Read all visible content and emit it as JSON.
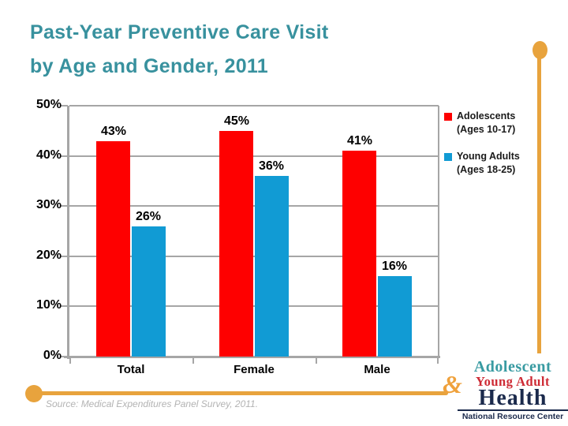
{
  "slide": {
    "title_line1": "Past-Year Preventive Care Visit",
    "title_line2": "by Age and Gender, 2011",
    "source": "Source: Medical Expenditures Panel Survey, 2011."
  },
  "chart_data": {
    "type": "bar",
    "title": "Past-Year Preventive Care Visit by Age and Gender, 2011",
    "categories": [
      "Total",
      "Female",
      "Male"
    ],
    "series": [
      {
        "name": "Adolescents (Ages 10-17)",
        "color": "#FE0000",
        "values": [
          43,
          45,
          41
        ]
      },
      {
        "name": "Young Adults (Ages 18-25)",
        "color": "#119BD4",
        "values": [
          26,
          36,
          16
        ]
      }
    ],
    "value_suffix": "%",
    "yticks": [
      0,
      10,
      20,
      30,
      40,
      50
    ],
    "ylim": [
      0,
      50
    ],
    "grid": true,
    "legend_position": "right"
  },
  "legend": {
    "items": [
      {
        "label_line1": "Adolescents",
        "label_line2": "(Ages 10-17)",
        "color": "#FE0000"
      },
      {
        "label_line1": "Young Adults",
        "label_line2": "(Ages 18-25)",
        "color": "#119BD4"
      }
    ]
  },
  "logo": {
    "amp": "&",
    "line1": "Adolescent",
    "line2": "Young Adult",
    "line3": "Health",
    "line4": "National Resource Center"
  },
  "colors": {
    "accent_orange": "#E8A33D",
    "title_teal": "#38919E",
    "grid_gray": "#A6A6A6",
    "bar_red": "#FE0000",
    "bar_blue": "#119BD4"
  }
}
